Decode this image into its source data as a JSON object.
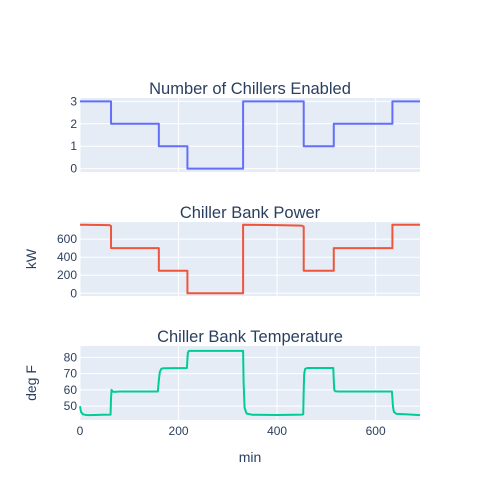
{
  "chart_data": [
    {
      "type": "line",
      "title": "Number of Chillers Enabled",
      "ylabel": "",
      "xlim": [
        0,
        690
      ],
      "ylim": [
        -0.15,
        3.15
      ],
      "yticks": [
        0,
        1,
        2,
        3
      ],
      "xticks": [
        0,
        200,
        400,
        600
      ],
      "grid": true,
      "color": "#636efa",
      "x": [
        0,
        63,
        63,
        160,
        160,
        218,
        218,
        331,
        331,
        454,
        454,
        515,
        515,
        634,
        634,
        690
      ],
      "y": [
        3,
        3,
        2,
        2,
        1,
        1,
        0,
        0,
        3,
        3,
        1,
        1,
        2,
        2,
        3,
        3
      ]
    },
    {
      "type": "line",
      "title": "Chiller Bank Power",
      "ylabel": "kW",
      "xlim": [
        0,
        690
      ],
      "ylim": [
        -30,
        790
      ],
      "yticks": [
        0,
        200,
        400,
        600
      ],
      "xticks": [
        0,
        200,
        400,
        600
      ],
      "grid": true,
      "color": "#ef553b",
      "x": [
        0,
        60,
        63,
        63,
        160,
        160,
        218,
        218,
        331,
        331,
        400,
        450,
        454,
        454,
        515,
        515,
        634,
        634,
        690
      ],
      "y": [
        760,
        755,
        745,
        500,
        500,
        250,
        250,
        0,
        0,
        760,
        755,
        750,
        740,
        250,
        250,
        500,
        500,
        760,
        760
      ]
    },
    {
      "type": "line",
      "title": "Chiller Bank Temperature",
      "ylabel": "deg F",
      "xlabel": "min",
      "xlim": [
        0,
        690
      ],
      "ylim": [
        41.5,
        87
      ],
      "yticks": [
        50,
        60,
        70,
        80
      ],
      "xticks": [
        0,
        200,
        400,
        600
      ],
      "grid": true,
      "color": "#00cc96",
      "x": [
        0,
        2,
        6,
        12,
        20,
        30,
        45,
        62,
        63,
        64,
        66,
        70,
        80,
        100,
        130,
        158,
        160,
        162,
        165,
        170,
        190,
        217,
        218,
        219,
        221,
        225,
        260,
        300,
        330,
        331,
        332,
        334,
        338,
        350,
        400,
        450,
        453,
        454,
        455,
        457,
        462,
        480,
        514,
        515,
        516,
        518,
        525,
        560,
        600,
        633,
        634,
        635,
        637,
        642,
        660,
        690
      ],
      "y": [
        50,
        46.5,
        45,
        44.6,
        44.5,
        44.6,
        44.7,
        44.8,
        55,
        60,
        59,
        58.8,
        59,
        59,
        59,
        59,
        66,
        71,
        73,
        73.3,
        73.4,
        73.5,
        79,
        83,
        84,
        84,
        84,
        84,
        84,
        84,
        65,
        49,
        45.5,
        44.7,
        44.6,
        44.8,
        45,
        60,
        70,
        73,
        73.5,
        73.5,
        73.5,
        66,
        60,
        59.2,
        59,
        59,
        59,
        59,
        55,
        50,
        46.5,
        45.3,
        45,
        44.5
      ]
    }
  ]
}
